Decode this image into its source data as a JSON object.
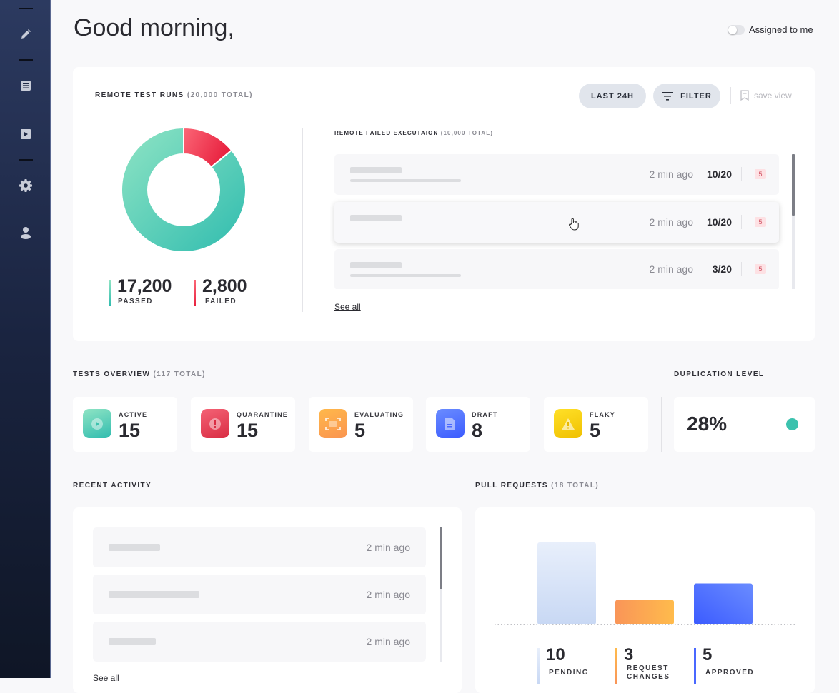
{
  "header": {
    "greeting": "Good morning,",
    "assigned_toggle_label": "Assigned to me",
    "assigned_toggle_on": false
  },
  "sidebar": {
    "items": [
      {
        "icon": "pencil-icon"
      },
      {
        "icon": "document-icon"
      },
      {
        "icon": "play-icon"
      },
      {
        "icon": "gear-icon"
      },
      {
        "icon": "user-icon"
      }
    ]
  },
  "remote_runs": {
    "title": "REMOTE TEST RUNS",
    "total": "(20,000 TOTAL)",
    "last_button": "LAST 24H",
    "filter_button": "FILTER",
    "save_view": "save view",
    "passed_value": "17,200",
    "passed_label": "PASSED",
    "failed_value": "2,800",
    "failed_label": "FAILED",
    "colors": {
      "passed": "#3cc2ae",
      "failed": "#ee3a50"
    },
    "failed_title": "REMOTE FAILED EXECUTAION",
    "failed_total": "(10,000 TOTAL)",
    "rows": [
      {
        "time": "2 min ago",
        "fraction": "10/20",
        "badge": "5"
      },
      {
        "time": "2 min ago",
        "fraction": "10/20",
        "badge": "5"
      },
      {
        "time": "2 min ago",
        "fraction": "3/20",
        "badge": "5"
      }
    ],
    "see_all": "See all"
  },
  "chart_data": [
    {
      "type": "pie",
      "title": "REMOTE TEST RUNS",
      "categories": [
        "PASSED",
        "FAILED"
      ],
      "values": [
        17200,
        2800
      ]
    },
    {
      "type": "bar",
      "title": "PULL REQUESTS",
      "categories": [
        "PENDING",
        "REQUEST CHANGES",
        "APPROVED"
      ],
      "values": [
        10,
        3,
        5
      ],
      "ylim": [
        0,
        10
      ]
    }
  ],
  "tests_overview": {
    "title": "TESTS OVERVIEW",
    "total": "(117 TOTAL)",
    "tiles": [
      {
        "label": "ACTIVE",
        "value": "15",
        "icon": "play-circle-icon"
      },
      {
        "label": "QUARANTINE",
        "value": "15",
        "icon": "alert-icon"
      },
      {
        "label": "EVALUATING",
        "value": "5",
        "icon": "scan-icon"
      },
      {
        "label": "DRAFT",
        "value": "8",
        "icon": "file-icon"
      },
      {
        "label": "FLAKY",
        "value": "5",
        "icon": "warning-icon"
      }
    ]
  },
  "duplication": {
    "title": "DUPLICATION LEVEL",
    "value": "28%",
    "status_color": "#3cc2ae"
  },
  "recent_activity": {
    "title": "RECENT ACTIVITY",
    "rows": [
      {
        "time": "2 min ago"
      },
      {
        "time": "2 min ago"
      },
      {
        "time": "2 min ago"
      }
    ],
    "see_all": "See all"
  },
  "pull_requests": {
    "title": "PULL REQUESTS",
    "total": "(18 TOTAL)",
    "items": [
      {
        "value": "10",
        "label": "PENDING"
      },
      {
        "value": "3",
        "label": "REQUEST CHANGES"
      },
      {
        "value": "5",
        "label": "APPROVED"
      }
    ]
  }
}
